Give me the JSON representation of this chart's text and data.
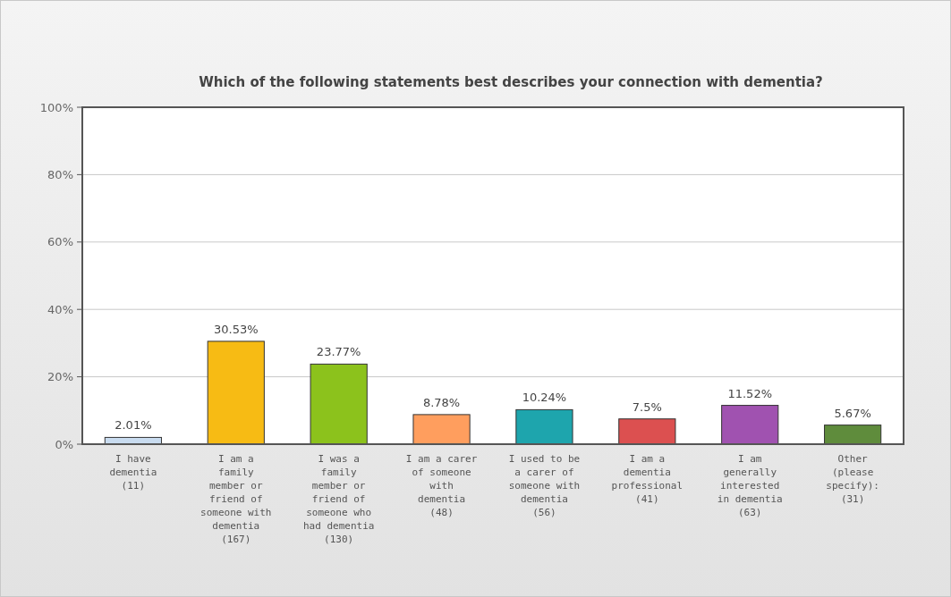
{
  "chart_data": {
    "type": "bar",
    "title": "Which of the following statements best describes your connection with dementia?",
    "categories": [
      "I have dementia (11)",
      "I am a family member or friend of someone with dementia (167)",
      "I was a family member or friend of someone who had dementia (130)",
      "I am a carer of someone with dementia (48)",
      "I used to be a carer of someone with dementia (56)",
      "I am a dementia professional (41)",
      "I am generally interested in dementia (63)",
      "Other (please specify): (31)"
    ],
    "values": [
      2.01,
      30.53,
      23.77,
      8.78,
      10.24,
      7.5,
      11.52,
      5.67
    ],
    "value_labels": [
      "2.01%",
      "30.53%",
      "23.77%",
      "8.78%",
      "10.24%",
      "7.5%",
      "11.52%",
      "5.67%"
    ],
    "colors": [
      "#c9dcf0",
      "#f7bb14",
      "#8cc21c",
      "#ff9e5e",
      "#1ea5ad",
      "#dc5050",
      "#a052b0",
      "#5f8c3c"
    ],
    "ylim": [
      0,
      100
    ],
    "yticks": [
      {
        "value": 0,
        "label": "0%"
      },
      {
        "value": 20,
        "label": "20%"
      },
      {
        "value": 40,
        "label": "40%"
      },
      {
        "value": 60,
        "label": "60%"
      },
      {
        "value": 80,
        "label": "80%"
      },
      {
        "value": 100,
        "label": "100%"
      }
    ],
    "grid": "y"
  }
}
